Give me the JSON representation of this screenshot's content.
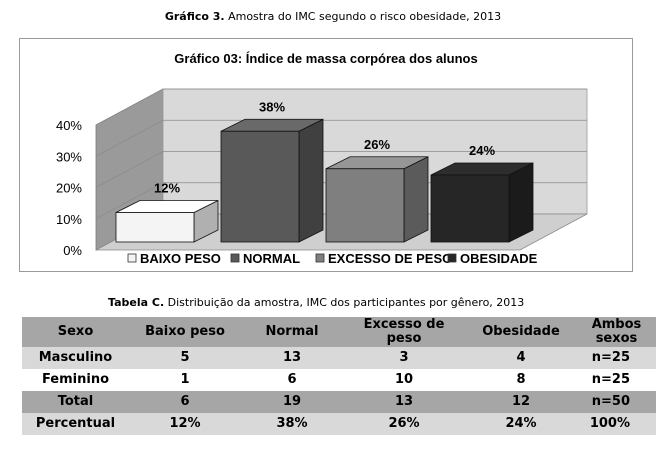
{
  "captions": {
    "chart_caption_bold": "Gráfico 3.",
    "chart_caption_text": " Amostra do IMC segundo o risco obesidade, 2013",
    "table_caption_bold": "Tabela C.",
    "table_caption_text": " Distribuição da amostra, IMC dos participantes por gênero, 2013"
  },
  "chart_data": {
    "type": "bar",
    "title": "Gráfico 03: Índice de massa corpórea dos alunos",
    "categories": [
      "BAIXO PESO",
      "NORMAL",
      "EXCESSO DE PESO",
      "OBESIDADE"
    ],
    "values": [
      12,
      38,
      26,
      24
    ],
    "data_labels": [
      "12%",
      "38%",
      "26%",
      "24%"
    ],
    "ylim": [
      0,
      40
    ],
    "yticks": [
      0,
      10,
      20,
      30,
      40
    ],
    "ytick_labels": [
      "0%",
      "10%",
      "20%",
      "30%",
      "40%"
    ],
    "grid": true,
    "legend": "bottom",
    "three_d": true,
    "colors": {
      "BAIXO PESO": "#f4f4f4",
      "NORMAL": "#595959",
      "EXCESSO DE PESO": "#7f7f7f",
      "OBESIDADE": "#262626",
      "back_wall": "#d9d9d9",
      "side_wall": "#9a9a9a",
      "floor": "#cfcfcf"
    }
  },
  "table": {
    "headers": [
      "Sexo",
      "Baixo peso",
      "Normal",
      "Excesso de peso",
      "Obesidade",
      "Ambos  sexos"
    ],
    "rows": [
      [
        "Masculino",
        "5",
        "13",
        "3",
        "4",
        "n=25"
      ],
      [
        "Feminino",
        "1",
        "6",
        "10",
        "8",
        "n=25"
      ],
      [
        "Total",
        "6",
        "19",
        "13",
        "12",
        "n=50"
      ],
      [
        "Percentual",
        "12%",
        "38%",
        "26%",
        "24%",
        "100%"
      ]
    ]
  }
}
